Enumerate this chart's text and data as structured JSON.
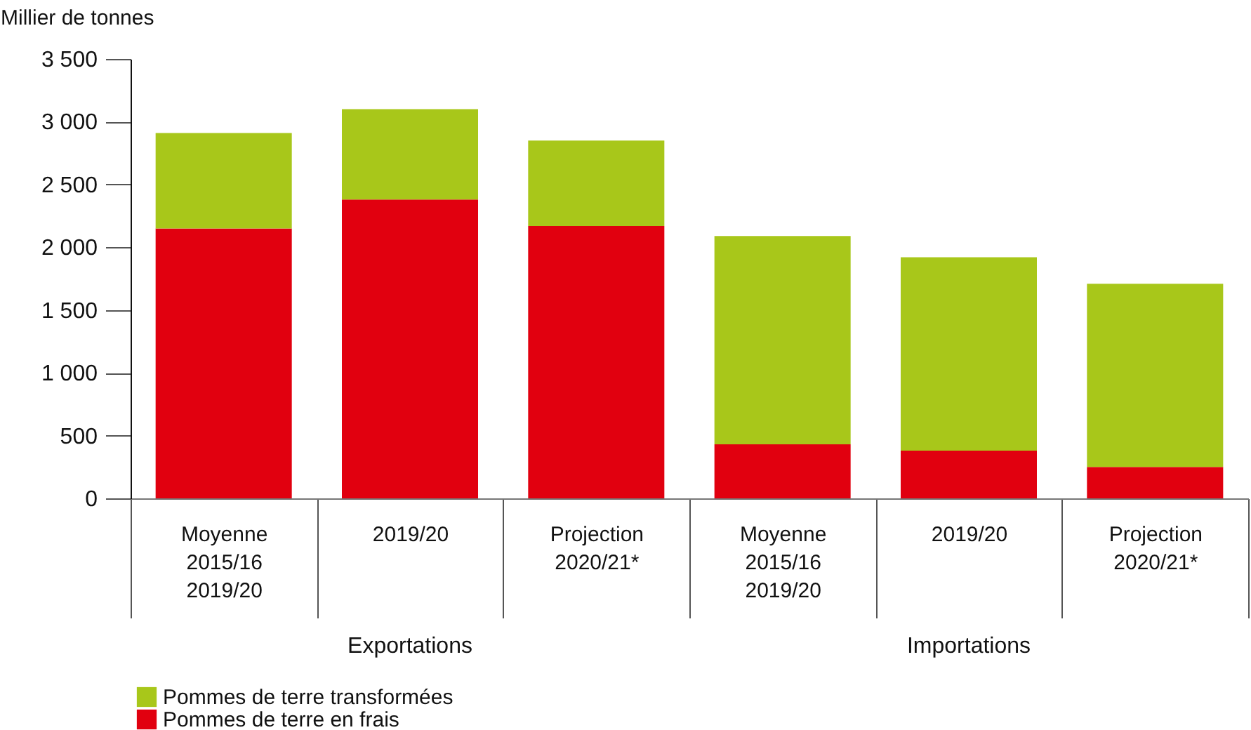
{
  "chart_data": {
    "type": "bar",
    "stacked": true,
    "ylabel": "Millier de tonnes",
    "categories": [
      "Moyenne 2015/16 2019/20",
      "2019/20",
      "Projection 2020/21*",
      "Moyenne 2015/16 2019/20",
      "2019/20",
      "Projection 2020/21*"
    ],
    "series": [
      {
        "name": "Pommes de terre en frais",
        "color": "#e1000f",
        "values": [
          2150,
          2380,
          2170,
          430,
          380,
          250
        ]
      },
      {
        "name": "Pommes de terre transformées",
        "color": "#a8c71a",
        "values": [
          760,
          720,
          680,
          1660,
          1540,
          1460
        ]
      }
    ],
    "annotations": [
      "Exportations",
      "Importations"
    ],
    "ylim": [
      0,
      3500
    ],
    "yticks": [
      0,
      500,
      {
        "value": 1000,
        "label": "1 000"
      },
      {
        "value": 1500,
        "label": "1 500"
      },
      {
        "value": 2000,
        "label": "2 000"
      },
      {
        "value": 2500,
        "label": "2 500"
      },
      {
        "value": 3000,
        "label": "3 000"
      },
      {
        "value": 3500,
        "label": "3 500"
      }
    ],
    "grid": false,
    "legend": "bottom left"
  }
}
